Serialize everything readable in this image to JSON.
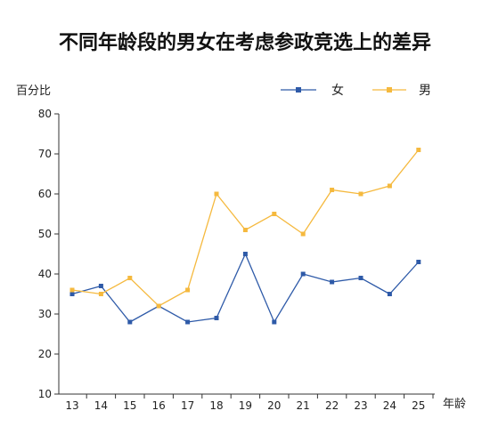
{
  "chart_data": {
    "type": "line",
    "title": "不同年龄段的男女在考虑参政竞选上的差异",
    "ylabel": "百分比",
    "xlabel": "年龄",
    "categories": [
      "13",
      "14",
      "15",
      "16",
      "17",
      "18",
      "19",
      "20",
      "21",
      "22",
      "23",
      "24",
      "25"
    ],
    "ylim": [
      10,
      80
    ],
    "yticks": [
      10,
      20,
      30,
      40,
      50,
      60,
      70,
      80
    ],
    "grid": false,
    "legend_position": "top-right",
    "series": [
      {
        "name": "女",
        "color": "#2e5aa8",
        "marker": "square",
        "values": [
          35,
          37,
          28,
          32,
          28,
          29,
          45,
          28,
          40,
          38,
          39,
          35,
          43
        ]
      },
      {
        "name": "男",
        "color": "#f5b93e",
        "marker": "square",
        "values": [
          36,
          35,
          39,
          32,
          36,
          60,
          51,
          55,
          50,
          61,
          60,
          62,
          71
        ]
      }
    ]
  }
}
